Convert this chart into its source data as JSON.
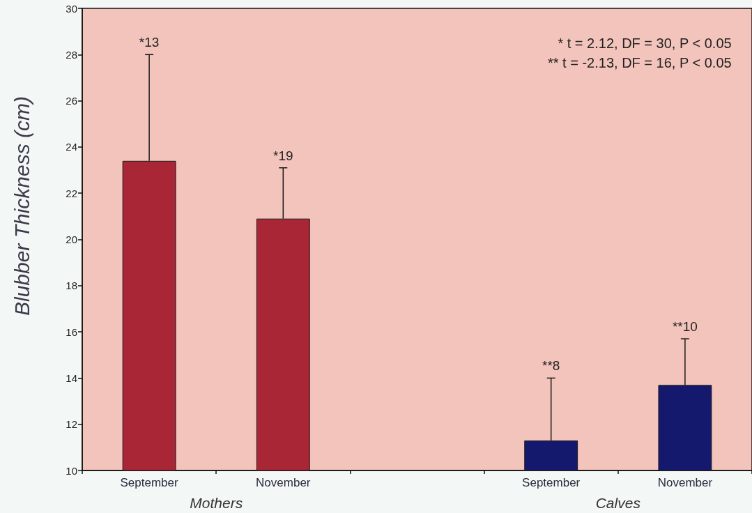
{
  "chart_data": {
    "type": "bar",
    "ylabel": "Blubber Thickness (cm)",
    "categories": [
      "September",
      "November",
      null,
      "September",
      "November"
    ],
    "values": [
      23.4,
      20.9,
      null,
      11.3,
      13.7
    ],
    "colors": [
      "#a82636",
      "#a82636",
      null,
      "#15196e",
      "#15196e"
    ],
    "errors": [
      [
        23.4,
        28.0
      ],
      [
        20.9,
        23.1
      ],
      null,
      [
        11.3,
        14.0
      ],
      [
        13.7,
        15.7
      ]
    ],
    "ylim": [
      10,
      30
    ],
    "yticks": [
      10,
      12,
      14,
      16,
      18,
      20,
      22,
      24,
      26,
      28,
      30
    ],
    "annotations": [
      "* t = 2.12, DF = 30, P < 0.05",
      "** t = -2.13, DF = 16, P < 0.05",
      "*13",
      "*19",
      "**8",
      "**10",
      "Mothers",
      "Calves"
    ]
  }
}
